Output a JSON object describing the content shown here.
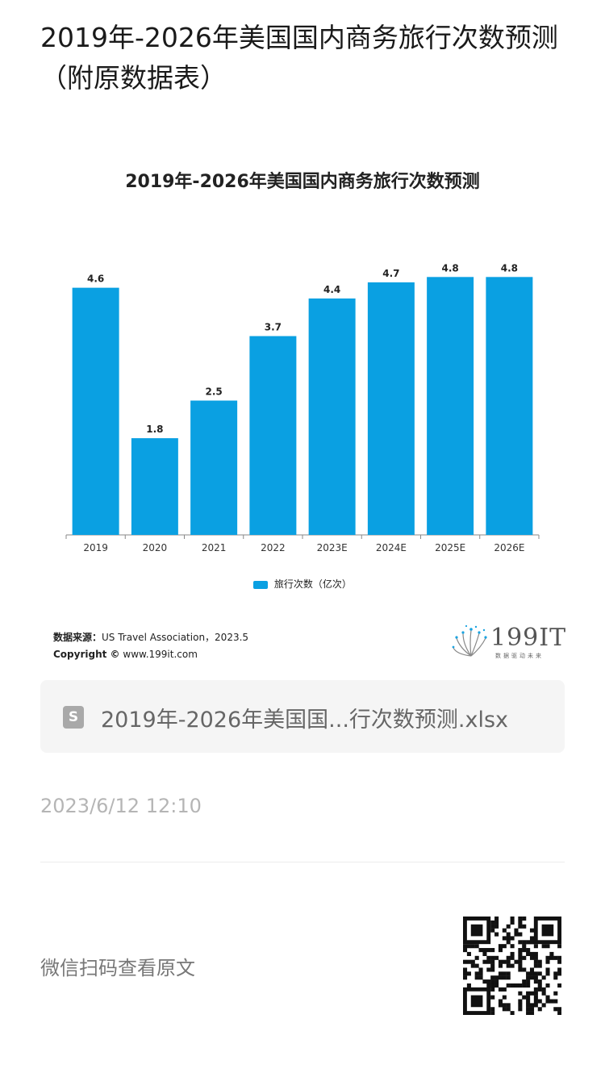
{
  "page": {
    "title": "2019年-2026年美国国内商务旅行次数预测（附原数据表）"
  },
  "chart_data": {
    "type": "bar",
    "title": "2019年-2026年美国国内商务旅行次数预测",
    "categories": [
      "2019",
      "2020",
      "2021",
      "2022",
      "2023E",
      "2024E",
      "2025E",
      "2026E"
    ],
    "series": [
      {
        "name": "旅行次数（亿次）",
        "values": [
          4.6,
          1.8,
          2.5,
          3.7,
          4.4,
          4.7,
          4.8,
          4.8
        ]
      }
    ],
    "value_labels": [
      "4.6",
      "1.8",
      "2.5",
      "3.7",
      "4.4",
      "4.7",
      "4.8",
      "4.8"
    ],
    "ylim": [
      0,
      5.0
    ],
    "grid": false,
    "legend_position": "bottom",
    "bar_color": "#0aa0e2"
  },
  "source": {
    "label": "数据来源：",
    "text": "US Travel Association，2023.5",
    "copyright_label": "Copyright ©",
    "copyright_text": "www.199it.com"
  },
  "logo": {
    "text": "199IT",
    "subtitle": "数据驱动未来"
  },
  "file": {
    "icon": "spreadsheet-file-icon",
    "icon_glyph": "S",
    "name": "2019年-2026年美国国...行次数预测.xlsx"
  },
  "meta": {
    "timestamp": "2023/6/12 12:10"
  },
  "footer": {
    "text": "微信扫码查看原文",
    "qr_icon": "qr-code-icon"
  }
}
